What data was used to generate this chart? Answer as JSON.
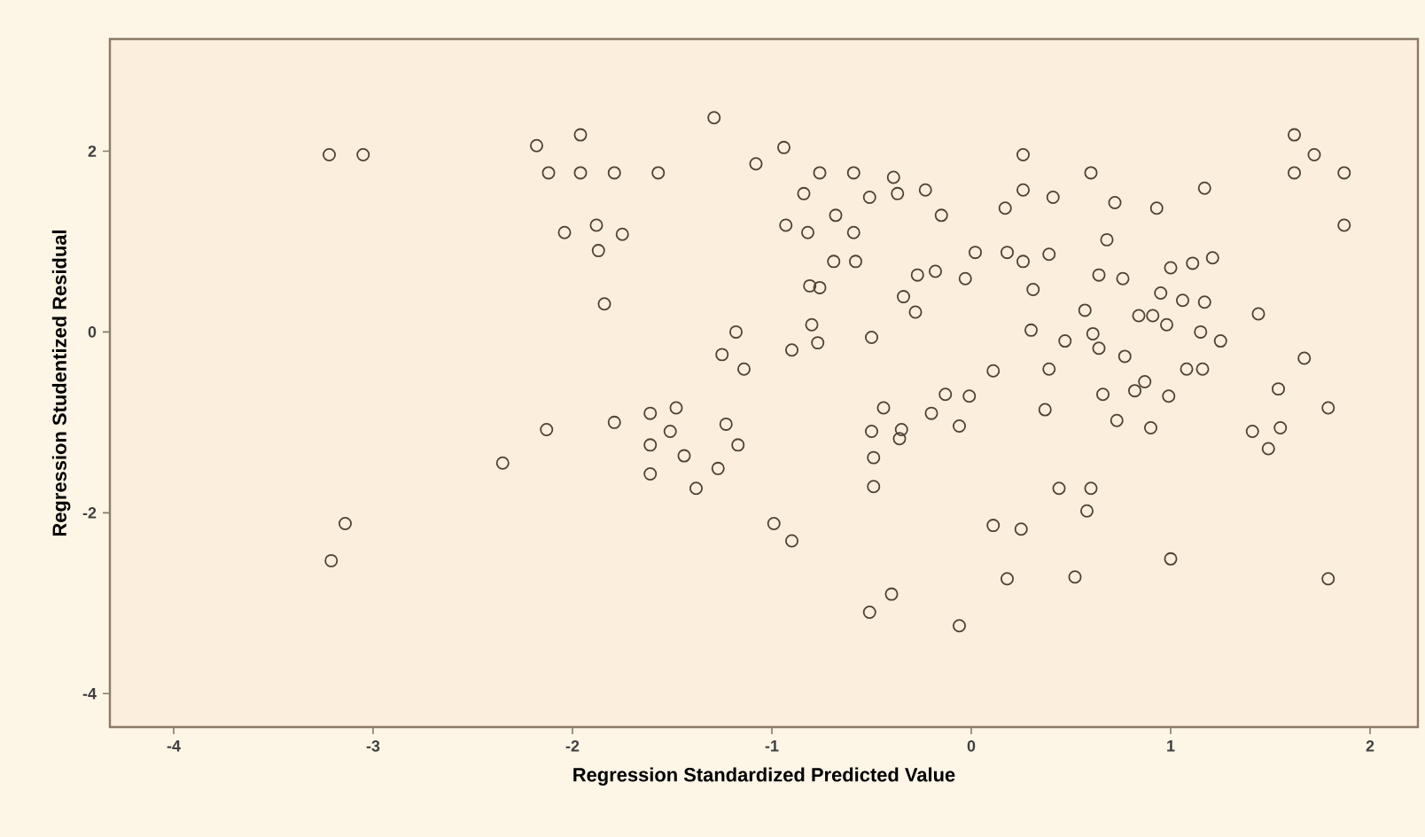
{
  "chart_data": {
    "type": "scatter",
    "xlabel": "Regression Standardized Predicted Value",
    "ylabel": "Regression Studentized Residual",
    "x": [
      -3.22,
      -3.05,
      -3.14,
      -3.21,
      -2.35,
      -2.13,
      -2.18,
      -2.12,
      -1.96,
      -1.96,
      -1.79,
      -1.57,
      -2.04,
      -1.88,
      -1.75,
      -1.87,
      -1.84,
      -1.29,
      -1.08,
      -0.94,
      -0.76,
      -0.59,
      -0.39,
      -0.37,
      -0.23,
      -0.15,
      -0.84,
      -0.51,
      -0.68,
      -0.93,
      -0.82,
      -0.59,
      -0.69,
      -0.58,
      -0.81,
      -0.76,
      -0.27,
      -0.18,
      -0.03,
      0.02,
      -0.34,
      -0.28,
      -0.8,
      -0.77,
      -0.5,
      -1.18,
      -1.25,
      -1.14,
      -0.9,
      -0.44,
      -0.13,
      -0.2,
      -0.01,
      -1.48,
      -1.61,
      -1.79,
      -1.23,
      -1.51,
      -1.61,
      -1.44,
      -1.61,
      -1.38,
      -1.27,
      -1.17,
      -0.99,
      -0.9,
      -0.5,
      -0.35,
      -0.36,
      -0.49,
      -0.49,
      -0.51,
      -0.4,
      -0.06,
      -0.06,
      0.26,
      0.6,
      0.26,
      0.17,
      0.41,
      0.72,
      0.93,
      1.17,
      1.62,
      1.72,
      1.62,
      1.87,
      1.87,
      0.68,
      0.64,
      0.76,
      1.0,
      1.11,
      1.21,
      0.18,
      0.26,
      0.39,
      0.31,
      0.95,
      1.06,
      1.17,
      0.57,
      0.84,
      0.91,
      0.98,
      0.3,
      0.47,
      0.61,
      0.64,
      1.15,
      1.25,
      1.44,
      0.77,
      0.11,
      0.39,
      1.08,
      1.16,
      1.67,
      0.37,
      0.66,
      0.82,
      0.99,
      1.54,
      1.79,
      0.87,
      0.73,
      0.9,
      1.41,
      1.55,
      1.49,
      0.44,
      0.6,
      0.58,
      0.11,
      0.25,
      0.18,
      0.52,
      1.0,
      1.79
    ],
    "values": [
      1.96,
      1.96,
      -2.12,
      -2.53,
      -1.45,
      -1.08,
      2.06,
      1.76,
      2.18,
      1.76,
      1.76,
      1.76,
      1.1,
      1.18,
      1.08,
      0.9,
      0.31,
      2.37,
      1.86,
      2.04,
      1.76,
      1.76,
      1.71,
      1.53,
      1.57,
      1.29,
      1.53,
      1.49,
      1.29,
      1.18,
      1.1,
      1.1,
      0.78,
      0.78,
      0.51,
      0.49,
      0.63,
      0.67,
      0.59,
      0.88,
      0.39,
      0.22,
      0.08,
      -0.12,
      -0.06,
      0,
      -0.25,
      -0.41,
      -0.2,
      -0.84,
      -0.69,
      -0.9,
      -0.71,
      -0.84,
      -0.9,
      -1.0,
      -1.02,
      -1.1,
      -1.25,
      -1.37,
      -1.57,
      -1.73,
      -1.51,
      -1.25,
      -2.12,
      -2.31,
      -1.1,
      -1.08,
      -1.18,
      -1.39,
      -1.71,
      -3.1,
      -2.9,
      -3.25,
      -1.04,
      1.96,
      1.76,
      1.57,
      1.37,
      1.49,
      1.43,
      1.37,
      1.59,
      2.18,
      1.96,
      1.76,
      1.76,
      1.18,
      1.02,
      0.63,
      0.59,
      0.71,
      0.76,
      0.82,
      0.88,
      0.78,
      0.86,
      0.47,
      0.43,
      0.35,
      0.33,
      0.24,
      0.18,
      0.18,
      0.08,
      0.02,
      -0.1,
      -0.02,
      -0.18,
      0,
      -0.1,
      0.2,
      -0.27,
      -0.43,
      -0.41,
      -0.41,
      -0.41,
      -0.29,
      -0.86,
      -0.69,
      -0.65,
      -0.71,
      -0.63,
      -0.84,
      -0.55,
      -0.98,
      -1.06,
      -1.1,
      -1.06,
      -1.29,
      -1.73,
      -1.73,
      -1.98,
      -2.14,
      -2.18,
      -2.73,
      -2.71,
      -2.51,
      -2.73
    ],
    "color": "#4d4236",
    "marker": "circle",
    "xlim": [
      -4.32,
      2.24
    ],
    "ylim": [
      -4.37,
      3.24
    ],
    "xticks": [
      -4,
      -3,
      -2,
      -1,
      0,
      1,
      2
    ],
    "yticks": [
      -4,
      -2,
      0,
      2
    ],
    "grid": false
  }
}
